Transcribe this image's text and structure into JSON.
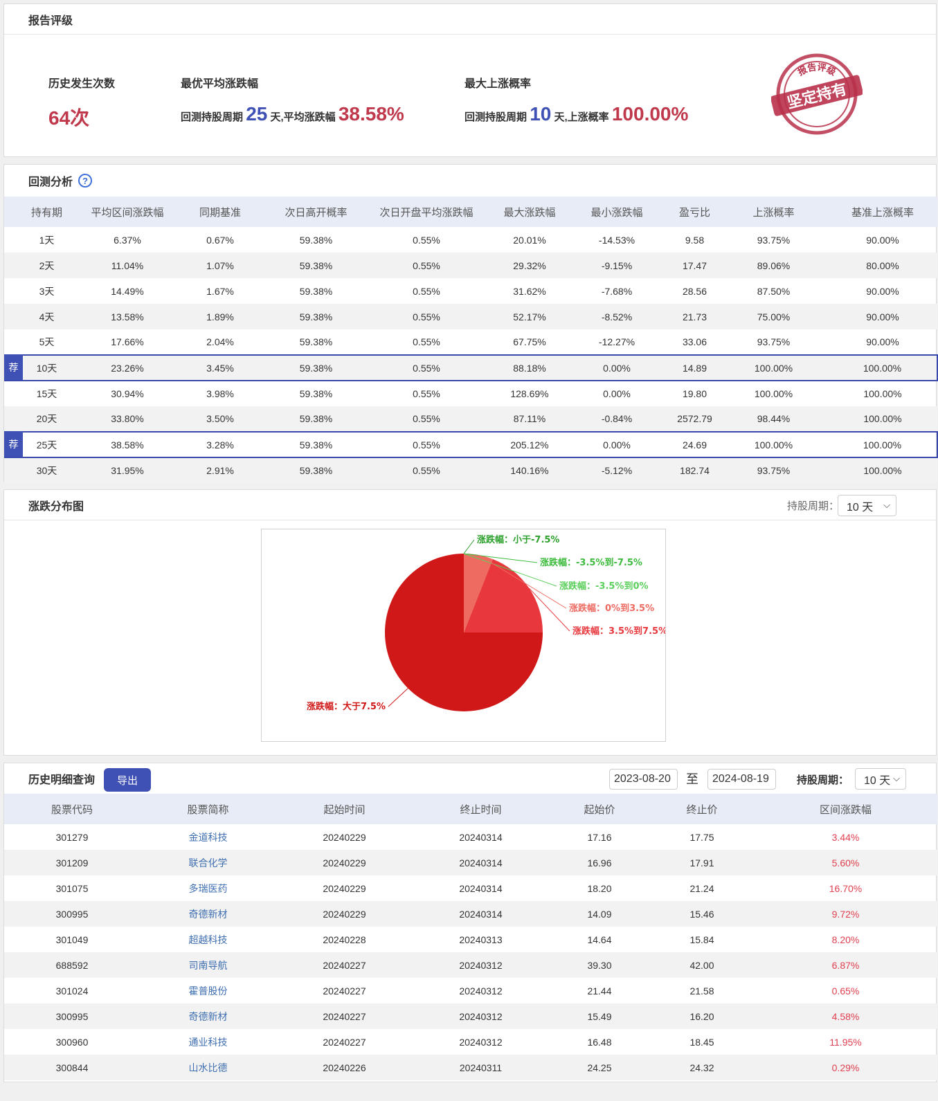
{
  "rating": {
    "title": "报告评级",
    "history_count_label": "历史发生次数",
    "history_count_value": "64次",
    "best_avg_label": "最优平均涨跌幅",
    "best_period_prefix": "回测持股周期",
    "best_period_value": "25",
    "best_period_mid": "天,平均涨跌幅",
    "best_avg_value": "38.58%",
    "max_prob_label": "最大上涨概率",
    "prob_period_prefix": "回测持股周期",
    "prob_period_value": "10",
    "prob_period_mid": "天,上涨概率",
    "max_prob_value": "100.00%",
    "stamp_top": "报告评级",
    "stamp_main": "坚定持有"
  },
  "backtest": {
    "title": "回测分析",
    "help_icon": "?",
    "rec_badge": "荐",
    "columns": [
      "持有期",
      "平均区间涨跌幅",
      "同期基准",
      "次日高开概率",
      "次日开盘平均涨跌幅",
      "最大涨跌幅",
      "最小涨跌幅",
      "盈亏比",
      "上涨概率",
      "基准上涨概率"
    ],
    "rows": [
      [
        "1天",
        "6.37%",
        "0.67%",
        "59.38%",
        "0.55%",
        "20.01%",
        "-14.53%",
        "9.58",
        "93.75%",
        "90.00%"
      ],
      [
        "2天",
        "11.04%",
        "1.07%",
        "59.38%",
        "0.55%",
        "29.32%",
        "-9.15%",
        "17.47",
        "89.06%",
        "80.00%"
      ],
      [
        "3天",
        "14.49%",
        "1.67%",
        "59.38%",
        "0.55%",
        "31.62%",
        "-7.68%",
        "28.56",
        "87.50%",
        "90.00%"
      ],
      [
        "4天",
        "13.58%",
        "1.89%",
        "59.38%",
        "0.55%",
        "52.17%",
        "-8.52%",
        "21.73",
        "75.00%",
        "90.00%"
      ],
      [
        "5天",
        "17.66%",
        "2.04%",
        "59.38%",
        "0.55%",
        "67.75%",
        "-12.27%",
        "33.06",
        "93.75%",
        "90.00%"
      ],
      [
        "10天",
        "23.26%",
        "3.45%",
        "59.38%",
        "0.55%",
        "88.18%",
        "0.00%",
        "14.89",
        "100.00%",
        "100.00%"
      ],
      [
        "15天",
        "30.94%",
        "3.98%",
        "59.38%",
        "0.55%",
        "128.69%",
        "0.00%",
        "19.80",
        "100.00%",
        "100.00%"
      ],
      [
        "20天",
        "33.80%",
        "3.50%",
        "59.38%",
        "0.55%",
        "87.11%",
        "-0.84%",
        "2572.79",
        "98.44%",
        "100.00%"
      ],
      [
        "25天",
        "38.58%",
        "3.28%",
        "59.38%",
        "0.55%",
        "205.12%",
        "0.00%",
        "24.69",
        "100.00%",
        "100.00%"
      ],
      [
        "30天",
        "31.95%",
        "2.91%",
        "59.38%",
        "0.55%",
        "140.16%",
        "-5.12%",
        "182.74",
        "93.75%",
        "100.00%"
      ]
    ],
    "recommended_rows": [
      5,
      8
    ]
  },
  "distribution": {
    "title": "涨跌分布图",
    "period_label": "持股周期：",
    "period_value": "10 天",
    "chart_data": {
      "type": "pie",
      "series": [
        {
          "label": "涨跌幅：小于-7.5%",
          "value": 0,
          "color": "#2ca02c"
        },
        {
          "label": "涨跌幅：-3.5%到-7.5%",
          "value": 0,
          "color": "#3dbb3d"
        },
        {
          "label": "涨跌幅：-3.5%到0%",
          "value": 0,
          "color": "#5ccf5c"
        },
        {
          "label": "涨跌幅：0%到3.5%",
          "value": 6,
          "color": "#ee6b62"
        },
        {
          "label": "涨跌幅：3.5%到7.5%",
          "value": 19,
          "color": "#e8383d"
        },
        {
          "label": "涨跌幅：大于7.5%",
          "value": 75,
          "color": "#d01818"
        }
      ]
    }
  },
  "history": {
    "title": "历史明细查询",
    "export_label": "导出",
    "date_from": "2023-08-20",
    "to_label": "至",
    "date_to": "2024-08-19",
    "hold_label": "持股周期：",
    "hold_value": "10 天",
    "columns": [
      "股票代码",
      "股票简称",
      "起始时间",
      "终止时间",
      "起始价",
      "终止价",
      "区间涨跌幅"
    ],
    "rows": [
      [
        "301279",
        "金道科技",
        "20240229",
        "20240314",
        "17.16",
        "17.75",
        "3.44%"
      ],
      [
        "301209",
        "联合化学",
        "20240229",
        "20240314",
        "16.96",
        "17.91",
        "5.60%"
      ],
      [
        "301075",
        "多瑞医药",
        "20240229",
        "20240314",
        "18.20",
        "21.24",
        "16.70%"
      ],
      [
        "300995",
        "奇德新材",
        "20240229",
        "20240314",
        "14.09",
        "15.46",
        "9.72%"
      ],
      [
        "301049",
        "超越科技",
        "20240228",
        "20240313",
        "14.64",
        "15.84",
        "8.20%"
      ],
      [
        "688592",
        "司南导航",
        "20240227",
        "20240312",
        "39.30",
        "42.00",
        "6.87%"
      ],
      [
        "301024",
        "霍普股份",
        "20240227",
        "20240312",
        "21.44",
        "21.58",
        "0.65%"
      ],
      [
        "300995",
        "奇德新材",
        "20240227",
        "20240312",
        "15.49",
        "16.20",
        "4.58%"
      ],
      [
        "300960",
        "通业科技",
        "20240227",
        "20240312",
        "16.48",
        "18.45",
        "11.95%"
      ],
      [
        "300844",
        "山水比德",
        "20240226",
        "20240311",
        "24.25",
        "24.32",
        "0.29%"
      ]
    ]
  }
}
